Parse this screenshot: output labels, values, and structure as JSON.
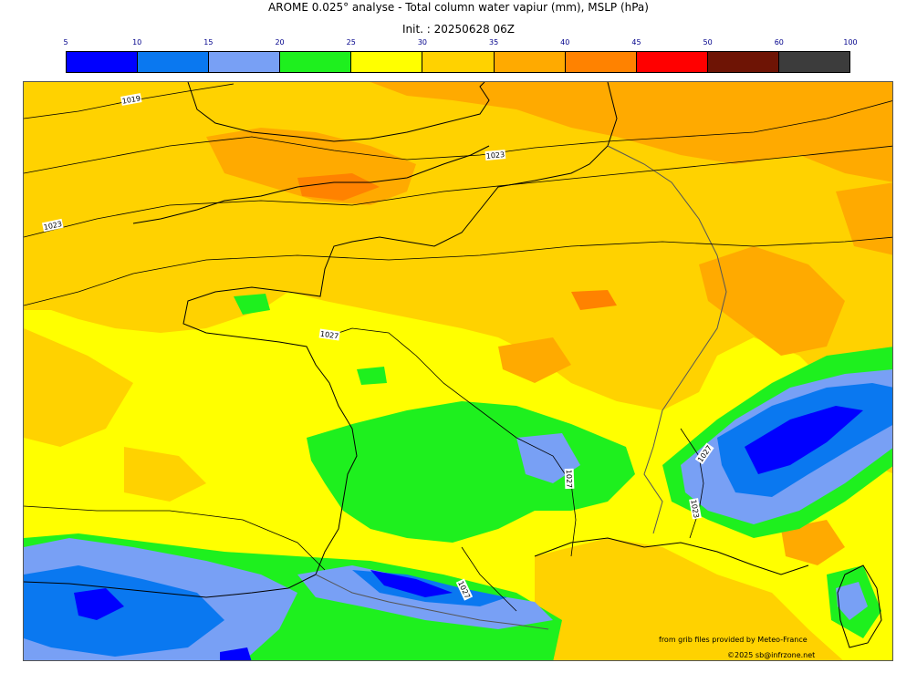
{
  "title": "AROME 0.025° analyse - Total column water vapiur (mm), MSLP (hPa)",
  "init": "Init. : 20250628 06Z",
  "colorbar": {
    "ticks": [
      "5",
      "10",
      "15",
      "20",
      "25",
      "30",
      "35",
      "40",
      "45",
      "50",
      "60",
      "100"
    ],
    "colors": [
      "#0000ff",
      "#0a78f0",
      "#78a0f5",
      "#1ef01e",
      "#ffff00",
      "#ffd200",
      "#ffaa00",
      "#ff8200",
      "#ff0000",
      "#6e1405",
      "#3c3c3c"
    ]
  },
  "isobars": [
    {
      "label": "1019"
    },
    {
      "label": "1023"
    },
    {
      "label": "1023"
    },
    {
      "label": "1027"
    },
    {
      "label": "1027"
    },
    {
      "label": "1027"
    },
    {
      "label": "1023"
    },
    {
      "label": "1027"
    }
  ],
  "credits": {
    "source": "from grib files provided by Meteo-France",
    "copyright": "©2025 sb@infrzone.net"
  }
}
